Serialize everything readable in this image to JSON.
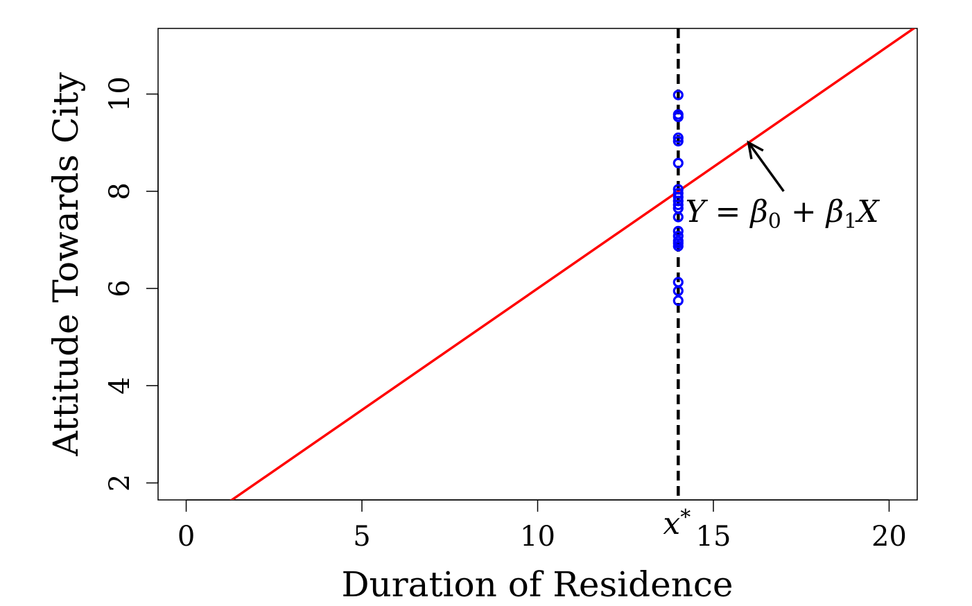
{
  "chart_data": {
    "type": "scatter",
    "title": "",
    "xlabel": "Duration of Residence",
    "ylabel": "Attitude Towards City",
    "xlim": [
      -0.8,
      20.8
    ],
    "ylim": [
      1.65,
      11.35
    ],
    "x_ticks": [
      0,
      5,
      10,
      15,
      20
    ],
    "y_ticks": [
      2,
      4,
      6,
      8,
      10
    ],
    "grid": false,
    "legend": "none",
    "regression_line": {
      "intercept": 1.0,
      "slope": 0.5,
      "color": "#ff0000",
      "label": "Y = β0 + β1X"
    },
    "vertical_line": {
      "x": 14,
      "label": "x*",
      "style": "dashed",
      "color": "#000000"
    },
    "points": {
      "color": "#0000ff",
      "x": [
        14,
        14,
        14,
        14,
        14,
        14,
        14,
        14,
        14,
        14,
        14,
        14,
        14,
        14,
        14,
        14,
        14,
        14,
        14,
        14,
        14
      ],
      "y": [
        9.98,
        9.58,
        9.53,
        9.1,
        9.03,
        8.58,
        8.04,
        7.96,
        7.88,
        7.8,
        7.72,
        7.65,
        7.47,
        7.18,
        7.08,
        6.98,
        6.93,
        6.87,
        6.13,
        5.95,
        5.75
      ]
    },
    "annotation": {
      "text": "Y = β0 + β1X",
      "arrow_to": {
        "x": 16,
        "y": 9
      },
      "arrow_from": {
        "x": 17,
        "y": 8
      }
    }
  }
}
